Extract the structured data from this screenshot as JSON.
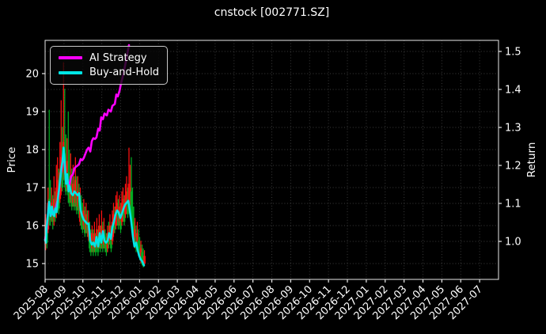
{
  "title": "cnstock [002771.SZ]",
  "axes": {
    "left_label": "Price",
    "right_label": "Return"
  },
  "legend": [
    {
      "label": "AI Strategy",
      "color": "#ff00ff"
    },
    {
      "label": "Buy-and-Hold",
      "color": "#00e5e5"
    }
  ],
  "chart_data": {
    "type": "line+candlestick",
    "title": "cnstock [002771.SZ]",
    "background": "#000000",
    "grid": true,
    "x_tick_labels": [
      "2025-08",
      "2025-09",
      "2025-10",
      "2025-11",
      "2025-12",
      "2026-01",
      "2026-02",
      "2026-03",
      "2026-04",
      "2026-05",
      "2026-06",
      "2026-07",
      "2026-08",
      "2026-09",
      "2026-10",
      "2026-11",
      "2026-12",
      "2027-01",
      "2027-02",
      "2027-03",
      "2027-04",
      "2027-05",
      "2027-06",
      "2027-07"
    ],
    "left_axis": {
      "label": "Price",
      "ticks": [
        15,
        16,
        17,
        18,
        19,
        20
      ],
      "range": [
        14.58,
        20.88
      ]
    },
    "right_axis": {
      "label": "Return",
      "ticks": [
        "1.0",
        "1.1",
        "1.2",
        "1.3",
        "1.4",
        "1.5"
      ],
      "range": [
        0.9,
        1.53
      ]
    },
    "series": [
      {
        "name": "AI Strategy",
        "color": "#ff00ff",
        "width": 2.6,
        "points": [
          [
            0,
            15.62
          ],
          [
            0.08,
            15.9
          ],
          [
            0.15,
            16.28
          ],
          [
            0.21,
            16.6
          ],
          [
            0.29,
            16.27
          ],
          [
            0.42,
            16.32
          ],
          [
            0.54,
            16.43
          ],
          [
            0.67,
            16.68
          ],
          [
            0.75,
            16.98
          ],
          [
            0.84,
            17.4
          ],
          [
            0.92,
            17.68
          ],
          [
            0.98,
            18.0
          ],
          [
            1.05,
            17.5
          ],
          [
            1.11,
            17.12
          ],
          [
            1.17,
            17.32
          ],
          [
            1.24,
            16.95
          ],
          [
            1.3,
            17.1
          ],
          [
            1.38,
            17.3
          ],
          [
            1.47,
            17.35
          ],
          [
            1.55,
            17.5
          ],
          [
            1.63,
            17.55
          ],
          [
            1.72,
            17.58
          ],
          [
            1.8,
            17.62
          ],
          [
            1.88,
            17.75
          ],
          [
            1.97,
            17.72
          ],
          [
            2.05,
            17.78
          ],
          [
            2.14,
            17.9
          ],
          [
            2.22,
            18.0
          ],
          [
            2.3,
            18.05
          ],
          [
            2.39,
            17.95
          ],
          [
            2.47,
            18.22
          ],
          [
            2.55,
            18.3
          ],
          [
            2.64,
            18.28
          ],
          [
            2.72,
            18.32
          ],
          [
            2.81,
            18.55
          ],
          [
            2.89,
            18.5
          ],
          [
            2.97,
            18.85
          ],
          [
            3.06,
            18.8
          ],
          [
            3.14,
            18.95
          ],
          [
            3.27,
            18.9
          ],
          [
            3.35,
            19.05
          ],
          [
            3.48,
            19.0
          ],
          [
            3.56,
            19.15
          ],
          [
            3.69,
            19.2
          ],
          [
            3.77,
            19.45
          ],
          [
            3.85,
            19.4
          ],
          [
            3.94,
            19.55
          ],
          [
            4.02,
            19.75
          ],
          [
            4.1,
            19.9
          ],
          [
            4.19,
            20.1
          ],
          [
            4.27,
            20.3
          ],
          [
            4.36,
            20.55
          ],
          [
            4.44,
            20.75
          ]
        ]
      },
      {
        "name": "Buy-and-Hold",
        "color": "#00e5e5",
        "width": 2.6,
        "points": [
          [
            0,
            15.62
          ],
          [
            0.04,
            15.55
          ],
          [
            0.08,
            15.95
          ],
          [
            0.15,
            16.3
          ],
          [
            0.21,
            16.62
          ],
          [
            0.25,
            16.45
          ],
          [
            0.29,
            16.25
          ],
          [
            0.36,
            16.5
          ],
          [
            0.42,
            16.3
          ],
          [
            0.48,
            16.25
          ],
          [
            0.54,
            16.45
          ],
          [
            0.61,
            16.35
          ],
          [
            0.67,
            16.7
          ],
          [
            0.75,
            17.0
          ],
          [
            0.84,
            17.45
          ],
          [
            0.92,
            17.7
          ],
          [
            0.98,
            18.05
          ],
          [
            1.05,
            17.55
          ],
          [
            1.11,
            17.1
          ],
          [
            1.17,
            17.35
          ],
          [
            1.24,
            16.9
          ],
          [
            1.3,
            17.05
          ],
          [
            1.38,
            16.85
          ],
          [
            1.47,
            16.8
          ],
          [
            1.55,
            16.9
          ],
          [
            1.63,
            16.85
          ],
          [
            1.72,
            16.8
          ],
          [
            1.8,
            16.85
          ],
          [
            1.88,
            16.4
          ],
          [
            1.97,
            16.25
          ],
          [
            2.05,
            16.15
          ],
          [
            2.14,
            16.1
          ],
          [
            2.22,
            16.05
          ],
          [
            2.3,
            16.05
          ],
          [
            2.39,
            15.6
          ],
          [
            2.47,
            15.5
          ],
          [
            2.55,
            15.55
          ],
          [
            2.64,
            15.45
          ],
          [
            2.72,
            15.7
          ],
          [
            2.81,
            15.45
          ],
          [
            2.89,
            15.8
          ],
          [
            2.97,
            15.55
          ],
          [
            3.06,
            15.85
          ],
          [
            3.14,
            15.6
          ],
          [
            3.23,
            15.55
          ],
          [
            3.31,
            15.6
          ],
          [
            3.39,
            15.8
          ],
          [
            3.48,
            15.65
          ],
          [
            3.56,
            15.95
          ],
          [
            3.64,
            16.1
          ],
          [
            3.73,
            16.3
          ],
          [
            3.81,
            16.4
          ],
          [
            3.89,
            16.35
          ],
          [
            3.98,
            16.2
          ],
          [
            4.06,
            16.3
          ],
          [
            4.15,
            16.45
          ],
          [
            4.23,
            16.55
          ],
          [
            4.31,
            16.6
          ],
          [
            4.4,
            16.65
          ],
          [
            4.48,
            16.4
          ],
          [
            4.56,
            16.1
          ],
          [
            4.65,
            15.7
          ],
          [
            4.73,
            15.45
          ],
          [
            4.82,
            15.55
          ],
          [
            4.9,
            15.35
          ],
          [
            4.98,
            15.2
          ],
          [
            5.07,
            15.1
          ],
          [
            5.15,
            15.05
          ],
          [
            5.23,
            14.95
          ]
        ]
      }
    ],
    "candles": {
      "color_up": "#ff1010",
      "color_down": "#00aa22",
      "start_month": 0.03,
      "interval_months": 0.063,
      "bars": [
        [
          15.35,
          16.3,
          15.5,
          16.15,
          "r"
        ],
        [
          15.4,
          16.1,
          15.55,
          15.9,
          "g"
        ],
        [
          15.8,
          17.0,
          15.9,
          16.6,
          "r"
        ],
        [
          16.0,
          19.05,
          16.2,
          16.7,
          "g"
        ],
        [
          16.0,
          17.2,
          16.15,
          16.5,
          "g"
        ],
        [
          16.1,
          17.0,
          16.25,
          16.6,
          "r"
        ],
        [
          15.9,
          16.8,
          16.1,
          16.4,
          "g"
        ],
        [
          16.0,
          17.3,
          16.2,
          16.7,
          "r"
        ],
        [
          16.1,
          16.9,
          16.2,
          16.5,
          "g"
        ],
        [
          16.2,
          17.6,
          16.35,
          17.0,
          "r"
        ],
        [
          16.4,
          17.8,
          16.5,
          17.2,
          "r"
        ],
        [
          16.3,
          17.5,
          16.45,
          16.9,
          "g"
        ],
        [
          16.6,
          18.2,
          16.7,
          17.4,
          "r"
        ],
        [
          16.8,
          19.3,
          16.9,
          17.8,
          "r"
        ],
        [
          16.9,
          18.6,
          17.0,
          17.6,
          "g"
        ],
        [
          17.2,
          20.3,
          17.4,
          18.2,
          "r"
        ],
        [
          17.0,
          19.6,
          17.2,
          17.9,
          "g"
        ],
        [
          16.8,
          18.4,
          16.9,
          17.5,
          "g"
        ],
        [
          16.9,
          18.3,
          17.0,
          17.7,
          "r"
        ],
        [
          16.6,
          19.0,
          16.8,
          17.4,
          "g"
        ],
        [
          16.5,
          18.0,
          16.6,
          17.2,
          "g"
        ],
        [
          16.6,
          17.9,
          16.7,
          17.3,
          "r"
        ],
        [
          16.4,
          17.5,
          16.5,
          16.9,
          "g"
        ],
        [
          16.5,
          17.6,
          16.6,
          17.1,
          "r"
        ],
        [
          16.4,
          17.3,
          16.5,
          16.8,
          "g"
        ],
        [
          16.5,
          17.8,
          16.6,
          17.2,
          "r"
        ],
        [
          16.3,
          17.3,
          16.4,
          16.8,
          "g"
        ],
        [
          16.4,
          17.3,
          16.5,
          16.9,
          "r"
        ],
        [
          16.2,
          17.1,
          16.3,
          16.7,
          "g"
        ],
        [
          16.0,
          17.0,
          16.1,
          16.6,
          "r"
        ],
        [
          15.9,
          16.8,
          16.0,
          16.4,
          "g"
        ],
        [
          15.8,
          16.6,
          15.9,
          16.2,
          "g"
        ],
        [
          15.9,
          16.7,
          16.0,
          16.4,
          "r"
        ],
        [
          15.7,
          16.5,
          15.8,
          16.1,
          "g"
        ],
        [
          15.8,
          16.6,
          15.9,
          16.3,
          "r"
        ],
        [
          15.7,
          16.4,
          15.8,
          16.1,
          "g"
        ],
        [
          15.6,
          16.4,
          15.7,
          16.1,
          "r"
        ],
        [
          15.3,
          16.1,
          15.4,
          15.8,
          "g"
        ],
        [
          15.2,
          15.9,
          15.3,
          15.6,
          "g"
        ],
        [
          15.3,
          16.0,
          15.4,
          15.8,
          "r"
        ],
        [
          15.2,
          15.9,
          15.3,
          15.6,
          "g"
        ],
        [
          15.3,
          16.1,
          15.4,
          15.8,
          "r"
        ],
        [
          15.2,
          15.8,
          15.3,
          15.6,
          "g"
        ],
        [
          15.4,
          16.2,
          15.5,
          15.9,
          "r"
        ],
        [
          15.2,
          15.9,
          15.3,
          15.6,
          "g"
        ],
        [
          15.4,
          16.3,
          15.5,
          16.0,
          "r"
        ],
        [
          15.3,
          16.0,
          15.4,
          15.7,
          "g"
        ],
        [
          15.4,
          16.4,
          15.5,
          16.0,
          "r"
        ],
        [
          15.3,
          16.1,
          15.4,
          15.8,
          "g"
        ],
        [
          15.4,
          16.2,
          15.5,
          15.9,
          "r"
        ],
        [
          15.3,
          15.9,
          15.4,
          15.7,
          "g"
        ],
        [
          15.2,
          15.8,
          15.3,
          15.6,
          "g"
        ],
        [
          15.3,
          16.0,
          15.4,
          15.8,
          "r"
        ],
        [
          15.4,
          16.1,
          15.5,
          15.8,
          "g"
        ],
        [
          15.5,
          16.3,
          15.6,
          16.0,
          "r"
        ],
        [
          15.3,
          16.0,
          15.4,
          15.7,
          "g"
        ],
        [
          15.5,
          16.4,
          15.6,
          16.1,
          "r"
        ],
        [
          15.7,
          16.6,
          15.8,
          16.3,
          "r"
        ],
        [
          15.8,
          16.5,
          15.9,
          16.2,
          "g"
        ],
        [
          15.9,
          16.8,
          16.0,
          16.5,
          "r"
        ],
        [
          16.0,
          16.9,
          16.1,
          16.6,
          "r"
        ],
        [
          15.9,
          16.7,
          16.0,
          16.4,
          "g"
        ],
        [
          16.0,
          16.8,
          16.1,
          16.5,
          "r"
        ],
        [
          15.8,
          16.6,
          15.9,
          16.3,
          "g"
        ],
        [
          16.0,
          16.9,
          16.1,
          16.6,
          "r"
        ],
        [
          16.1,
          17.0,
          16.2,
          16.7,
          "r"
        ],
        [
          16.0,
          16.8,
          16.1,
          16.5,
          "g"
        ],
        [
          16.2,
          17.1,
          16.3,
          16.8,
          "r"
        ],
        [
          16.3,
          17.3,
          16.4,
          16.9,
          "r"
        ],
        [
          16.2,
          17.0,
          16.3,
          16.7,
          "g"
        ],
        [
          16.4,
          18.05,
          16.5,
          17.1,
          "r"
        ],
        [
          16.3,
          17.6,
          16.4,
          17.0,
          "r"
        ],
        [
          16.2,
          17.8,
          16.3,
          16.9,
          "g"
        ],
        [
          16.0,
          17.0,
          16.1,
          16.5,
          "g"
        ],
        [
          15.6,
          16.5,
          15.7,
          16.1,
          "g"
        ],
        [
          15.4,
          16.2,
          15.5,
          15.9,
          "r"
        ],
        [
          15.3,
          16.0,
          15.4,
          15.7,
          "g"
        ],
        [
          15.4,
          16.1,
          15.5,
          15.8,
          "r"
        ],
        [
          15.2,
          15.9,
          15.3,
          15.6,
          "g"
        ],
        [
          15.1,
          15.7,
          15.2,
          15.5,
          "g"
        ],
        [
          15.0,
          15.6,
          15.1,
          15.4,
          "r"
        ],
        [
          14.95,
          15.5,
          15.0,
          15.3,
          "g"
        ],
        [
          14.9,
          15.4,
          14.95,
          15.2,
          "g"
        ],
        [
          14.95,
          15.35,
          15.0,
          15.2,
          "r"
        ]
      ]
    }
  }
}
